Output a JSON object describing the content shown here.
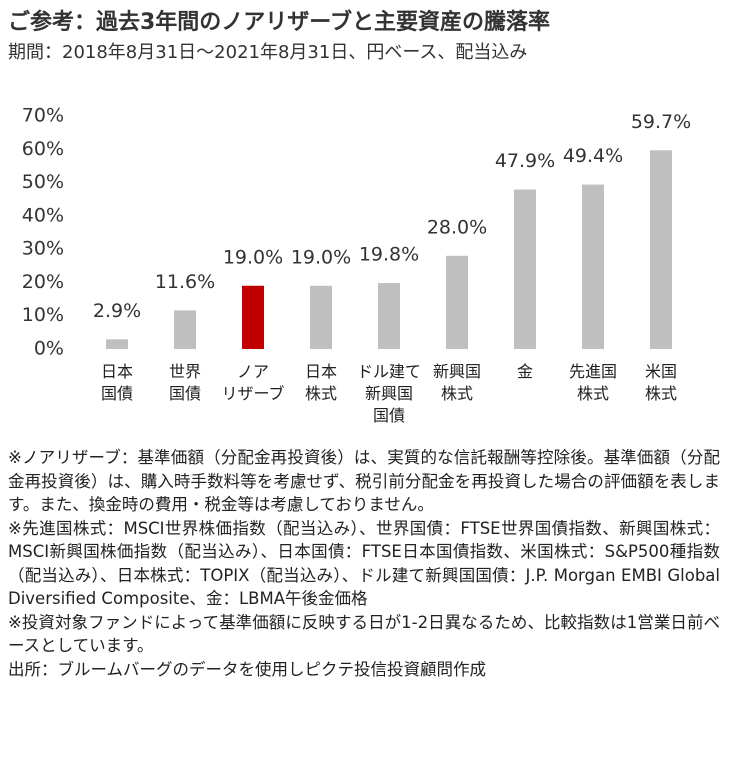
{
  "chart_data": {
    "type": "bar",
    "title": "ご参考：過去3年間のノアリザーブと主要資産の騰落率",
    "subtitle": "期間：2018年8月31日～2021年8月31日、円ベース、配当込み",
    "categories": [
      "日本\n国債",
      "世界\n国債",
      "ノア\nリザーブ",
      "日本\n株式",
      "ドル建て\n新興国\n国債",
      "新興国\n株式",
      "金",
      "先進国\n株式",
      "米国\n株式"
    ],
    "values": [
      2.9,
      11.6,
      19.0,
      19.0,
      19.8,
      28.0,
      47.9,
      49.4,
      59.7
    ],
    "value_labels": [
      "2.9%",
      "11.6%",
      "19.0%",
      "19.0%",
      "19.8%",
      "28.0%",
      "47.9%",
      "49.4%",
      "59.7%"
    ],
    "colors": [
      "#bfbfbf",
      "#bfbfbf",
      "#c00000",
      "#bfbfbf",
      "#bfbfbf",
      "#bfbfbf",
      "#bfbfbf",
      "#bfbfbf",
      "#bfbfbf"
    ],
    "ylim": [
      0,
      70
    ],
    "yticks": [
      {
        "value": 0,
        "label": "0%"
      },
      {
        "value": 10,
        "label": "10%"
      },
      {
        "value": 20,
        "label": "20%"
      },
      {
        "value": 30,
        "label": "30%"
      },
      {
        "value": 40,
        "label": "40%"
      },
      {
        "value": 50,
        "label": "50%"
      },
      {
        "value": 60,
        "label": "60%"
      },
      {
        "value": 70,
        "label": "70%"
      }
    ],
    "grid": false
  },
  "notes": [
    "※ノアリザーブ：基準価額（分配金再投資後）は、実質的な信託報酬等控除後。基準価額（分配金再投資後）は、購入時手数料等を考慮せず、税引前分配金を再投資した場合の評価額を表します。また、換金時の費用・税金等は考慮しておりません。",
    "※先進国株式：MSCI世界株価指数（配当込み）、世界国債：FTSE世界国債指数、新興国株式：MSCI新興国株価指数（配当込み）、日本国債：FTSE日本国債指数、米国株式：S&P500種指数（配当込み）、日本株式：TOPIX（配当込み）、ドル建て新興国国債：J.P. Morgan EMBI Global Diversified Composite、金：LBMA午後金価格",
    "※投資対象ファンドによって基準価額に反映する日が1-2日異なるため、比較指数は1営業日前ベースとしています。",
    "出所：ブルームバーグのデータを使用しピクテ投信投資顧問作成"
  ]
}
